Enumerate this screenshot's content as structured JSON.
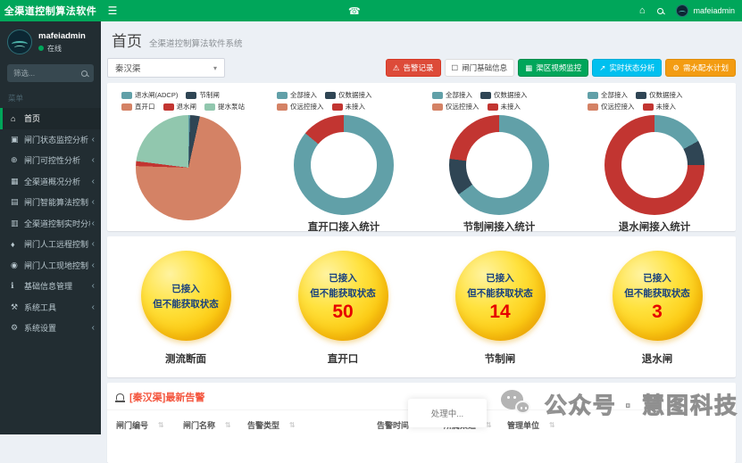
{
  "header": {
    "app_title": "全渠道控制算法软件",
    "menu_icon": "☰",
    "phone_icon": "☎",
    "home_icon": "⌂",
    "username": "mafeiadmin"
  },
  "sidebar": {
    "username": "mafeiadmin",
    "status": "在线",
    "search_placeholder": "筛选...",
    "section_label": "菜单",
    "chevron": "‹",
    "items": [
      {
        "label": "首页",
        "icon": "home-icon",
        "glyph": "⌂",
        "active": true,
        "has_children": false
      },
      {
        "label": "闸门状态监控分析",
        "icon": "gate-status-monitor-icon",
        "glyph": "▣",
        "active": false,
        "has_children": true
      },
      {
        "label": "闸门可控性分析",
        "icon": "gate-controllability-icon",
        "glyph": "⊕",
        "active": false,
        "has_children": true
      },
      {
        "label": "全渠道概况分析",
        "icon": "channel-overview-icon",
        "glyph": "▦",
        "active": false,
        "has_children": true
      },
      {
        "label": "闸门智能算法控制",
        "icon": "smart-algorithm-icon",
        "glyph": "▤",
        "active": false,
        "has_children": true
      },
      {
        "label": "全渠道控制实时分析",
        "icon": "realtime-analysis-icon",
        "glyph": "▥",
        "active": false,
        "has_children": true
      },
      {
        "label": "闸门人工远程控制",
        "icon": "manual-remote-control-icon",
        "glyph": "♦",
        "active": false,
        "has_children": true
      },
      {
        "label": "闸门人工现地控制",
        "icon": "manual-local-control-icon",
        "glyph": "◉",
        "active": false,
        "has_children": true
      },
      {
        "label": "基础信息管理",
        "icon": "base-info-icon",
        "glyph": "ℹ",
        "active": false,
        "has_children": true
      },
      {
        "label": "系统工具",
        "icon": "system-tools-icon",
        "glyph": "⚒",
        "active": false,
        "has_children": true
      },
      {
        "label": "系统设置",
        "icon": "system-settings-icon",
        "glyph": "⚙",
        "active": false,
        "has_children": true
      }
    ]
  },
  "content": {
    "page_title": "首页",
    "page_subtitle": "全渠道控制算法软件系统",
    "channel_select": {
      "value": "秦汉渠",
      "caret": "▾"
    },
    "toolbar_buttons": [
      {
        "name": "alarm-records-button",
        "label": "告警记录",
        "glyph": "⚠",
        "icon": "alarm-bell-icon",
        "style": "danger"
      },
      {
        "name": "gate-basic-info-button",
        "label": "闸门基础信息",
        "glyph": "☐",
        "icon": "card-icon",
        "style": "default"
      },
      {
        "name": "canal-video-monitor-button",
        "label": "渠区视频监控",
        "glyph": "▦",
        "icon": "map-icon",
        "style": "success"
      },
      {
        "name": "realtime-status-button",
        "label": "实时状态分析",
        "glyph": "↗",
        "icon": "chart-line-icon",
        "style": "info"
      },
      {
        "name": "water-plan-button",
        "label": "需水配水计划",
        "glyph": "⚙",
        "icon": "gear-icon",
        "style": "warning"
      }
    ]
  },
  "chart_data": [
    {
      "type": "pie",
      "donut": false,
      "title": "",
      "legend_position": "top",
      "unit": "percent (estimated from arc angles)",
      "categories": [
        "退水闸(ADCP)",
        "节制闸",
        "直开口",
        "退水闸",
        "提水泵站"
      ],
      "values": [
        0.5,
        3,
        72,
        1.5,
        23
      ],
      "colors": [
        "#61a0a8",
        "#2f4554",
        "#d48265",
        "#c23531",
        "#91c7ae"
      ]
    },
    {
      "type": "pie",
      "donut": true,
      "title": "直开口接入统计",
      "legend_position": "top",
      "unit": "percent (estimated from arc angles)",
      "categories": [
        "全部接入",
        "仅数据接入",
        "仅远控接入",
        "未接入"
      ],
      "values": [
        86,
        0,
        0,
        14
      ],
      "colors": [
        "#61a0a8",
        "#2f4554",
        "#d48265",
        "#c23531"
      ]
    },
    {
      "type": "pie",
      "donut": true,
      "title": "节制闸接入统计",
      "legend_position": "top",
      "unit": "percent (estimated from arc angles)",
      "categories": [
        "全部接入",
        "仅数据接入",
        "仅远控接入",
        "未接入"
      ],
      "values": [
        65,
        12,
        0,
        23
      ],
      "colors": [
        "#61a0a8",
        "#2f4554",
        "#d48265",
        "#c23531"
      ]
    },
    {
      "type": "pie",
      "donut": true,
      "title": "退水闸接入统计",
      "legend_position": "top",
      "unit": "percent (estimated from arc angles)",
      "categories": [
        "全部接入",
        "仅数据接入",
        "仅远控接入",
        "未接入"
      ],
      "values": [
        17,
        8,
        0,
        75
      ],
      "colors": [
        "#61a0a8",
        "#2f4554",
        "#d48265",
        "#c23531"
      ]
    }
  ],
  "stats": {
    "status_line1": "已接入",
    "status_line2": "但不能获取状态",
    "circles": [
      {
        "label": "测流断面",
        "value": ""
      },
      {
        "label": "直开口",
        "value": "50"
      },
      {
        "label": "节制闸",
        "value": "14"
      },
      {
        "label": "退水闸",
        "value": "3"
      }
    ]
  },
  "alerts": {
    "title": "[秦汉渠]最新告警",
    "processing": "处理中...",
    "sort_glyph": "⇅",
    "columns": [
      "闸门编号",
      "闸门名称",
      "告警类型",
      "告警时间",
      "所属渠道",
      "管理单位"
    ]
  },
  "watermark": {
    "text": "公众号 · 慧图科技"
  },
  "colors": {
    "header_green": "#00a65a",
    "sidebar_dark": "#222d32",
    "danger": "#dd4b39",
    "info": "#00c0ef",
    "warning": "#f39c12",
    "chart_palette": [
      "#61a0a8",
      "#2f4554",
      "#d48265",
      "#c23531",
      "#91c7ae"
    ]
  }
}
